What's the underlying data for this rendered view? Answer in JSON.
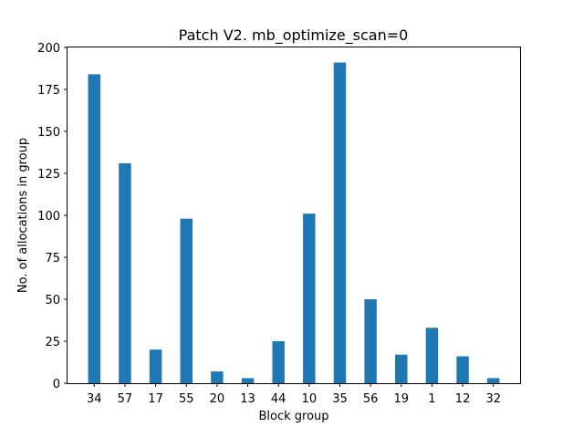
{
  "chart_data": {
    "type": "bar",
    "title": "Patch V2. mb_optimize_scan=0",
    "xlabel": "Block group",
    "ylabel": "No. of allocations in group",
    "categories": [
      "34",
      "57",
      "17",
      "55",
      "20",
      "13",
      "44",
      "10",
      "35",
      "56",
      "19",
      "1",
      "12",
      "32"
    ],
    "values": [
      184,
      131,
      20,
      98,
      7,
      3,
      25,
      101,
      191,
      50,
      17,
      33,
      16,
      3
    ],
    "ylim": [
      0,
      200
    ],
    "yticks": [
      "0",
      "25",
      "50",
      "75",
      "100",
      "125",
      "150",
      "175",
      "200"
    ],
    "grid": false,
    "bar_color": "#1f77b4"
  }
}
